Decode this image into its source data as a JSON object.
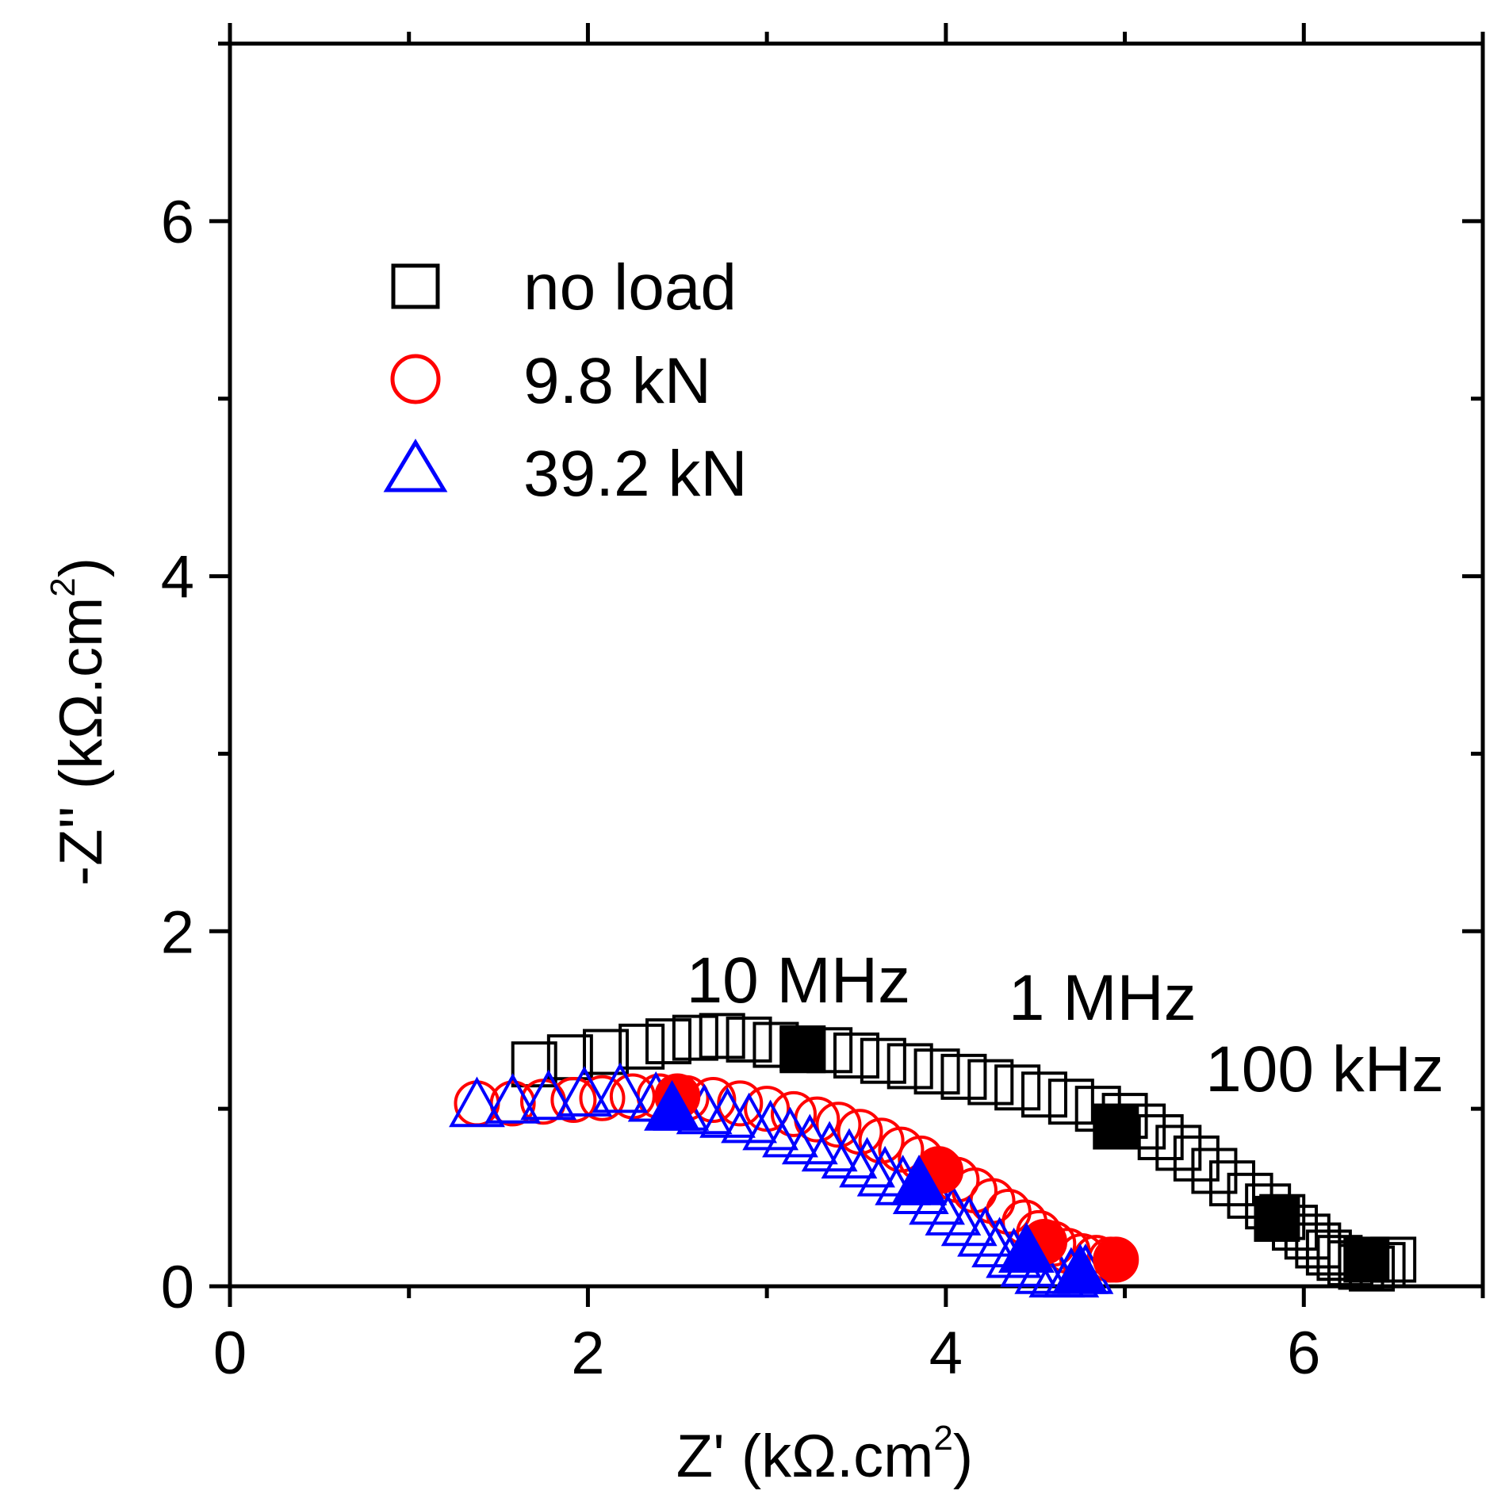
{
  "chart_data": {
    "type": "scatter",
    "title": "",
    "xlabel_main": "Z' (kΩ.cm",
    "xlabel_sup": "2",
    "xlabel_end": ")",
    "ylabel_main": "-Z'' (kΩ.cm",
    "ylabel_sup": "2",
    "ylabel_end": ")",
    "xlim": [
      0,
      7
    ],
    "ylim": [
      0,
      7
    ],
    "x_ticks": [
      0,
      2,
      4,
      6
    ],
    "y_ticks": [
      0,
      2,
      4,
      6
    ],
    "x_tick_labels": [
      "0",
      "2",
      "4",
      "6"
    ],
    "y_tick_labels": [
      "0",
      "2",
      "4",
      "6"
    ],
    "grid": false,
    "legend_position": "top-left",
    "series": [
      {
        "name": "no load",
        "marker": "square",
        "color": "#000000",
        "x": [
          1.7,
          1.9,
          2.1,
          2.3,
          2.45,
          2.6,
          2.75,
          2.9,
          3.05,
          3.2,
          3.35,
          3.5,
          3.65,
          3.8,
          3.95,
          4.1,
          4.25,
          4.4,
          4.55,
          4.7,
          4.85,
          5.0,
          5.1,
          5.2,
          5.3,
          5.4,
          5.5,
          5.6,
          5.7,
          5.8,
          5.88,
          5.95,
          6.02,
          6.08,
          6.14,
          6.2,
          6.26,
          6.32,
          6.38,
          6.44,
          6.5
        ],
        "y": [
          1.25,
          1.29,
          1.32,
          1.35,
          1.38,
          1.4,
          1.41,
          1.39,
          1.36,
          1.34,
          1.33,
          1.3,
          1.27,
          1.24,
          1.21,
          1.18,
          1.15,
          1.12,
          1.08,
          1.04,
          1.0,
          0.96,
          0.9,
          0.84,
          0.78,
          0.72,
          0.65,
          0.58,
          0.51,
          0.45,
          0.39,
          0.33,
          0.28,
          0.23,
          0.19,
          0.16,
          0.13,
          0.11,
          0.1,
          0.12,
          0.15
        ],
        "filled_x": [
          3.2,
          4.95,
          5.85,
          6.35
        ],
        "filled_y": [
          1.33,
          0.9,
          0.38,
          0.15
        ]
      },
      {
        "name": "9.8 kN",
        "marker": "circle",
        "color": "#ff0000",
        "x": [
          1.38,
          1.58,
          1.75,
          1.92,
          2.08,
          2.25,
          2.4,
          2.55,
          2.7,
          2.85,
          3.0,
          3.15,
          3.28,
          3.4,
          3.52,
          3.64,
          3.75,
          3.86,
          3.96,
          4.06,
          4.16,
          4.26,
          4.35,
          4.44,
          4.52,
          4.6,
          4.68,
          4.76,
          4.84,
          4.92
        ],
        "y": [
          1.03,
          1.03,
          1.04,
          1.05,
          1.06,
          1.07,
          1.07,
          1.06,
          1.05,
          1.03,
          1.0,
          0.97,
          0.94,
          0.91,
          0.87,
          0.82,
          0.77,
          0.72,
          0.66,
          0.6,
          0.54,
          0.48,
          0.42,
          0.36,
          0.3,
          0.24,
          0.2,
          0.17,
          0.16,
          0.15
        ],
        "filled_x": [
          2.5,
          3.97,
          4.55,
          4.95
        ],
        "filled_y": [
          1.07,
          0.65,
          0.25,
          0.15
        ]
      },
      {
        "name": "39.2 kN",
        "marker": "triangle",
        "color": "#0000ff",
        "x": [
          1.38,
          1.58,
          1.78,
          1.98,
          2.18,
          2.38,
          2.52,
          2.65,
          2.78,
          2.9,
          3.02,
          3.13,
          3.24,
          3.35,
          3.46,
          3.56,
          3.66,
          3.76,
          3.86,
          3.95,
          4.04,
          4.13,
          4.22,
          4.3,
          4.38,
          4.46,
          4.54,
          4.62,
          4.7,
          4.78
        ],
        "y": [
          1.02,
          1.04,
          1.06,
          1.08,
          1.1,
          1.05,
          1.0,
          0.98,
          0.96,
          0.93,
          0.89,
          0.85,
          0.81,
          0.77,
          0.73,
          0.68,
          0.63,
          0.58,
          0.53,
          0.47,
          0.41,
          0.35,
          0.29,
          0.23,
          0.17,
          0.12,
          0.08,
          0.06,
          0.06,
          0.08
        ],
        "filled_x": [
          2.47,
          3.85,
          4.45,
          4.75
        ],
        "filled_y": [
          1.0,
          0.58,
          0.2,
          0.08
        ]
      }
    ],
    "annotations": [
      {
        "text": "10 MHz",
        "x": 2.55,
        "y": 1.6
      },
      {
        "text": "1 MHz",
        "x": 4.35,
        "y": 1.5
      },
      {
        "text": "100 kHz",
        "x": 5.45,
        "y": 1.1
      }
    ]
  }
}
